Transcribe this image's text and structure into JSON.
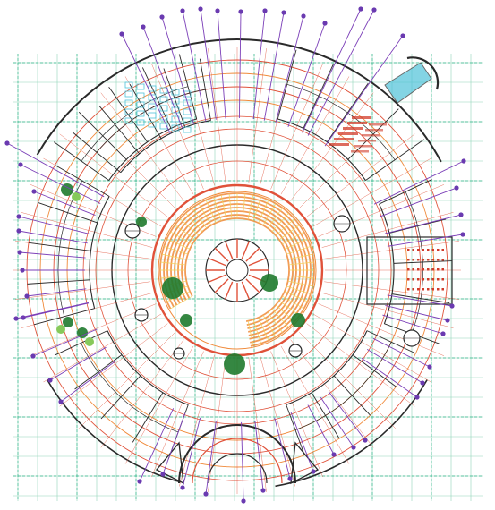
{
  "drawing": {
    "type": "architectural-floor-plan",
    "form": "circular",
    "colors": {
      "background": "#ffffff",
      "grid_major": "#2fb58a",
      "grid_minor": "#8fd6b8",
      "radial_outer": "#e0523a",
      "radial_inner": "#f08a3a",
      "wall": "#2a2a2a",
      "leader": "#7b3fb8",
      "leader_dot": "#6a3ab0",
      "accent_red": "#d13b2a",
      "accent_blue": "#3a7bd5",
      "glazing": "#4fc3d9",
      "planting": "#1f7a2e",
      "planting_light": "#86c95a",
      "floor_yellow": "#f2d25c"
    },
    "tags": [
      "",
      "",
      "",
      "",
      "",
      "",
      "",
      ""
    ]
  }
}
